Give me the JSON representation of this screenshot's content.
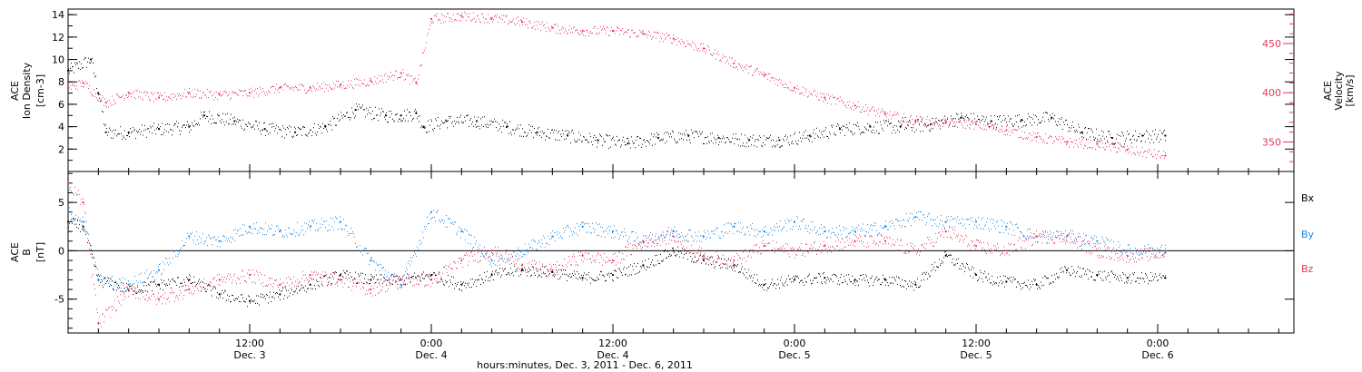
{
  "colors": {
    "black": "#000000",
    "pink": "#e8385f",
    "blue": "#1e88e5"
  },
  "xaxis": {
    "title": "hours:minutes, Dec.  3, 2011 - Dec.  6, 2011",
    "ticks": [
      {
        "t": 12,
        "time": "12:00",
        "day": "Dec. 3"
      },
      {
        "t": 24,
        "time": "0:00",
        "day": "Dec. 4"
      },
      {
        "t": 36,
        "time": "12:00",
        "day": "Dec. 4"
      },
      {
        "t": 48,
        "time": "0:00",
        "day": "Dec. 5"
      },
      {
        "t": 60,
        "time": "12:00",
        "day": "Dec. 5"
      },
      {
        "t": 72,
        "time": "0:00",
        "day": "Dec. 6"
      }
    ]
  },
  "chart_data": [
    {
      "type": "scatter",
      "panel": "top",
      "xlim_hours": [
        0,
        81
      ],
      "y_left": {
        "label_lines": [
          "ACE",
          "Ion Density",
          "[cm-3]"
        ],
        "ylim": [
          0,
          14.5
        ],
        "ticks": [
          2,
          4,
          6,
          8,
          10,
          12,
          14
        ]
      },
      "y_right": {
        "label_lines": [
          "ACE",
          "Velocity",
          "[km/s]"
        ],
        "ylim": [
          320,
          485
        ],
        "ticks": [
          350,
          400,
          450
        ]
      },
      "series": [
        {
          "axis": "left",
          "color": "#000000",
          "points": [
            [
              0,
              9
            ],
            [
              1.5,
              10
            ],
            [
              2,
              7
            ],
            [
              2.5,
              3.5
            ],
            [
              4,
              3.5
            ],
            [
              6,
              3.8
            ],
            [
              8,
              4
            ],
            [
              9,
              5
            ],
            [
              11,
              4.5
            ],
            [
              13,
              3.8
            ],
            [
              15,
              3.5
            ],
            [
              17,
              4
            ],
            [
              19,
              5.5
            ],
            [
              21,
              5
            ],
            [
              22,
              5
            ],
            [
              23,
              5.2
            ],
            [
              23.5,
              4
            ],
            [
              25,
              4.5
            ],
            [
              27,
              4.5
            ],
            [
              29,
              4
            ],
            [
              31,
              3.5
            ],
            [
              33,
              3.2
            ],
            [
              35,
              2.8
            ],
            [
              37,
              2.5
            ],
            [
              39,
              3
            ],
            [
              41,
              3.2
            ],
            [
              43,
              3
            ],
            [
              45,
              2.8
            ],
            [
              47,
              2.8
            ],
            [
              49,
              3.2
            ],
            [
              51,
              3.8
            ],
            [
              53,
              4
            ],
            [
              55,
              4
            ],
            [
              57,
              4.2
            ],
            [
              59,
              4.8
            ],
            [
              61,
              4.5
            ],
            [
              63,
              4.6
            ],
            [
              65,
              4.8
            ],
            [
              67,
              3.5
            ],
            [
              69,
              3
            ],
            [
              71,
              3.2
            ],
            [
              72.5,
              3.2
            ]
          ]
        },
        {
          "axis": "right",
          "color": "#e8385f",
          "points": [
            [
              0,
              405
            ],
            [
              1,
              410
            ],
            [
              2.5,
              390
            ],
            [
              4,
              400
            ],
            [
              6,
              395
            ],
            [
              8,
              400
            ],
            [
              10,
              398
            ],
            [
              12,
              400
            ],
            [
              14,
              405
            ],
            [
              16,
              405
            ],
            [
              18,
              408
            ],
            [
              20,
              412
            ],
            [
              22,
              420
            ],
            [
              23,
              410
            ],
            [
              24,
              475
            ],
            [
              26,
              478
            ],
            [
              28,
              476
            ],
            [
              30,
              472
            ],
            [
              32,
              466
            ],
            [
              34,
              463
            ],
            [
              36,
              463
            ],
            [
              38,
              460
            ],
            [
              40,
              455
            ],
            [
              42,
              445
            ],
            [
              44,
              430
            ],
            [
              46,
              418
            ],
            [
              48,
              405
            ],
            [
              50,
              395
            ],
            [
              52,
              387
            ],
            [
              54,
              378
            ],
            [
              56,
              372
            ],
            [
              58,
              370
            ],
            [
              60,
              368
            ],
            [
              62,
              362
            ],
            [
              64,
              355
            ],
            [
              66,
              350
            ],
            [
              68,
              348
            ],
            [
              70,
              342
            ],
            [
              72.5,
              336
            ]
          ]
        }
      ]
    },
    {
      "type": "scatter",
      "panel": "bottom",
      "xlim_hours": [
        0,
        81
      ],
      "y_left": {
        "label_lines": [
          "ACE",
          "B",
          "[nT]"
        ],
        "ylim": [
          -8.5,
          8.2
        ],
        "ticks": [
          -5,
          0,
          5
        ]
      },
      "zero_line": true,
      "series": [
        {
          "name": "Bx",
          "color": "#000000",
          "points": [
            [
              0,
              3
            ],
            [
              1,
              2.5
            ],
            [
              2,
              -3
            ],
            [
              4,
              -4
            ],
            [
              6,
              -3.5
            ],
            [
              8,
              -3
            ],
            [
              10,
              -4.5
            ],
            [
              12,
              -5.2
            ],
            [
              14,
              -4.5
            ],
            [
              16,
              -3.5
            ],
            [
              18,
              -2.5
            ],
            [
              20,
              -3
            ],
            [
              22,
              -3
            ],
            [
              24,
              -2.5
            ],
            [
              26,
              -3.5
            ],
            [
              28,
              -2.5
            ],
            [
              30,
              -2
            ],
            [
              32,
              -2.2
            ],
            [
              34,
              -2.8
            ],
            [
              36,
              -2.5
            ],
            [
              38,
              -1.5
            ],
            [
              40,
              0
            ],
            [
              42,
              -1
            ],
            [
              44,
              -1.5
            ],
            [
              46,
              -3.5
            ],
            [
              48,
              -3
            ],
            [
              50,
              -2.8
            ],
            [
              52,
              -3
            ],
            [
              54,
              -3
            ],
            [
              56,
              -3.5
            ],
            [
              58,
              -0.5
            ],
            [
              60,
              -2.5
            ],
            [
              62,
              -3.2
            ],
            [
              64,
              -3.5
            ],
            [
              66,
              -2
            ],
            [
              68,
              -2.5
            ],
            [
              70,
              -2.8
            ],
            [
              72.5,
              -2.8
            ]
          ]
        },
        {
          "name": "By",
          "color": "#1e88e5",
          "points": [
            [
              0,
              4
            ],
            [
              1,
              3
            ],
            [
              2,
              -3
            ],
            [
              4,
              -3.5
            ],
            [
              6,
              -2
            ],
            [
              8,
              1.5
            ],
            [
              10,
              1
            ],
            [
              12,
              2.5
            ],
            [
              14,
              2
            ],
            [
              16,
              2.5
            ],
            [
              18,
              3
            ],
            [
              20,
              -1
            ],
            [
              22,
              -3.5
            ],
            [
              24,
              4
            ],
            [
              26,
              2
            ],
            [
              28,
              -1
            ],
            [
              30,
              0
            ],
            [
              32,
              1.5
            ],
            [
              34,
              2.5
            ],
            [
              36,
              2
            ],
            [
              38,
              1
            ],
            [
              40,
              2
            ],
            [
              42,
              1.5
            ],
            [
              44,
              2.5
            ],
            [
              46,
              2
            ],
            [
              48,
              3
            ],
            [
              50,
              2
            ],
            [
              52,
              2
            ],
            [
              54,
              2.5
            ],
            [
              56,
              3.5
            ],
            [
              58,
              3
            ],
            [
              60,
              3
            ],
            [
              62,
              2.5
            ],
            [
              64,
              1.5
            ],
            [
              66,
              1.5
            ],
            [
              68,
              1
            ],
            [
              70,
              0
            ],
            [
              72.5,
              0
            ]
          ]
        },
        {
          "name": "Bz",
          "color": "#e8385f",
          "points": [
            [
              0,
              7
            ],
            [
              1,
              5
            ],
            [
              2,
              -7.5
            ],
            [
              4,
              -4
            ],
            [
              6,
              -5
            ],
            [
              8,
              -4
            ],
            [
              10,
              -3
            ],
            [
              12,
              -2.5
            ],
            [
              14,
              -3.5
            ],
            [
              16,
              -2.5
            ],
            [
              18,
              -3
            ],
            [
              20,
              -4
            ],
            [
              22,
              -3
            ],
            [
              24,
              -3
            ],
            [
              26,
              -1
            ],
            [
              28,
              0
            ],
            [
              30,
              -1.5
            ],
            [
              32,
              -2
            ],
            [
              34,
              -0.5
            ],
            [
              36,
              -1
            ],
            [
              38,
              1
            ],
            [
              40,
              1.5
            ],
            [
              42,
              -0.5
            ],
            [
              44,
              -1
            ],
            [
              46,
              0.5
            ],
            [
              48,
              0
            ],
            [
              50,
              0.5
            ],
            [
              52,
              1
            ],
            [
              54,
              1
            ],
            [
              56,
              0
            ],
            [
              58,
              2
            ],
            [
              60,
              0.5
            ],
            [
              62,
              0
            ],
            [
              64,
              1.5
            ],
            [
              66,
              1.5
            ],
            [
              68,
              0
            ],
            [
              70,
              -0.5
            ],
            [
              72.5,
              -0.2
            ]
          ]
        }
      ]
    }
  ]
}
